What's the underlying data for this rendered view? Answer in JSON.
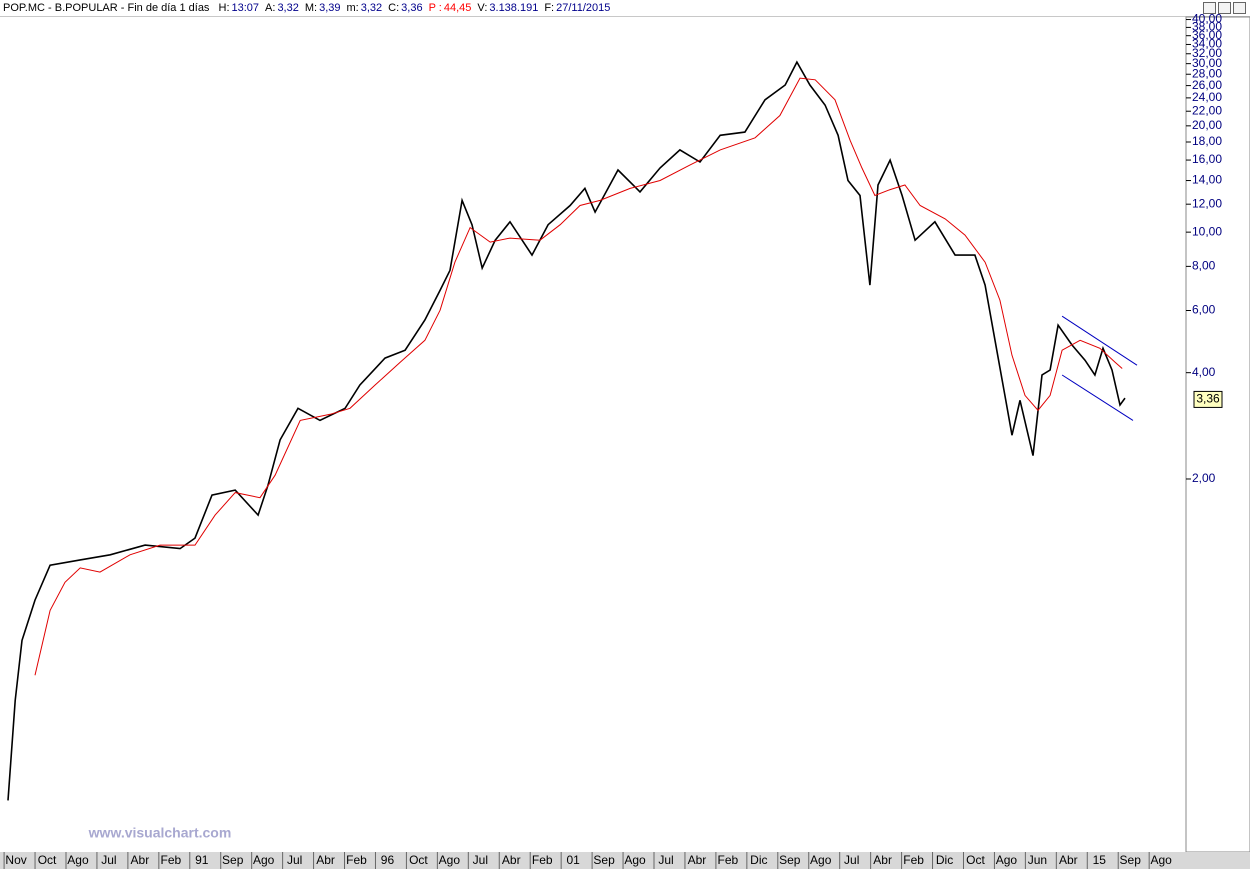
{
  "chart_data": {
    "type": "line",
    "title": "POP.MC - B.POPULAR - Fin de día 1 días",
    "header_fields": [
      {
        "label": "H:",
        "value": "13:07",
        "color": "#00008b"
      },
      {
        "label": "A:",
        "value": "3,32",
        "color": "#00008b"
      },
      {
        "label": "M:",
        "value": "3,39",
        "color": "#00008b"
      },
      {
        "label": "m:",
        "value": "3,32",
        "color": "#00008b"
      },
      {
        "label": "C:",
        "value": "3,36",
        "color": "#00008b"
      },
      {
        "label": "P :",
        "value": "44,45",
        "color": "#ff0000"
      },
      {
        "label": "V:",
        "value": "3.138.191",
        "color": "#00008b"
      },
      {
        "label": "F:",
        "value": "27/11/2015",
        "color": "#00008b"
      }
    ],
    "watermark": "www.visualchart.com",
    "log_scale": true,
    "categories": [
      "Nov",
      "Oct",
      "Ago",
      "Jul",
      "Abr",
      "Feb",
      "91",
      "Sep",
      "Ago",
      "Jul",
      "Abr",
      "Feb",
      "96",
      "Oct",
      "Ago",
      "Jul",
      "Abr",
      "Feb",
      "01",
      "Sep",
      "Ago",
      "Jul",
      "Abr",
      "Feb",
      "Dic",
      "Sep",
      "Ago",
      "Jul",
      "Abr",
      "Feb",
      "Dic",
      "Oct",
      "Ago",
      "Jun",
      "Abr",
      "15",
      "Sep",
      "Ago"
    ],
    "xlim": [
      -0.52,
      37.77
    ],
    "ylim": [
      0.178,
      41.2
    ],
    "yticks": [
      {
        "value": 40,
        "label": "40,00"
      },
      {
        "value": 38,
        "label": "38,00"
      },
      {
        "value": 36,
        "label": "36,00"
      },
      {
        "value": 34,
        "label": "34,00"
      },
      {
        "value": 32,
        "label": "32,00"
      },
      {
        "value": 30,
        "label": "30,00"
      },
      {
        "value": 28,
        "label": "28,00"
      },
      {
        "value": 26,
        "label": "26,00"
      },
      {
        "value": 24,
        "label": "24,00"
      },
      {
        "value": 22,
        "label": "22,00"
      },
      {
        "value": 20,
        "label": "20,00"
      },
      {
        "value": 18,
        "label": "18,00"
      },
      {
        "value": 16,
        "label": "16,00"
      },
      {
        "value": 14,
        "label": "14,00"
      },
      {
        "value": 12,
        "label": "12,00"
      },
      {
        "value": 10,
        "label": "10,00"
      },
      {
        "value": 8,
        "label": "8,00"
      },
      {
        "value": 6,
        "label": "6,00"
      },
      {
        "value": 4,
        "label": "4,00"
      },
      {
        "value": 2,
        "label": "2,00"
      }
    ],
    "series": [
      {
        "color": "#000000",
        "x": [
          -0.26,
          -0.03,
          0.19,
          0.61,
          1.1,
          2.07,
          3.04,
          4.17,
          5.3,
          5.78,
          6.33,
          7.08,
          7.82,
          8.14,
          8.53,
          9.11,
          9.82,
          10.63,
          11.11,
          11.92,
          12.57,
          13.21,
          13.7,
          14.02,
          14.41,
          14.73,
          15.06,
          15.48,
          15.96,
          16.67,
          17.19,
          17.9,
          18.38,
          18.71,
          19.45,
          20.16,
          20.81,
          21.45,
          22.1,
          22.75,
          23.55,
          24.2,
          24.85,
          25.23,
          25.65,
          26.14,
          26.56,
          26.88,
          27.27,
          27.59,
          27.85,
          28.24,
          28.63,
          29.05,
          29.69,
          30.34,
          30.98,
          31.31,
          31.63,
          31.95,
          32.18,
          32.44,
          32.86,
          33.15,
          33.41,
          33.67,
          34.12,
          34.54,
          34.86,
          35.12,
          35.41,
          35.67,
          35.83
        ],
        "values": [
          0.246,
          0.472,
          0.698,
          0.908,
          1.14,
          1.18,
          1.22,
          1.3,
          1.27,
          1.36,
          1.8,
          1.86,
          1.58,
          1.92,
          2.58,
          3.17,
          2.93,
          3.17,
          3.69,
          4.4,
          4.63,
          5.64,
          6.85,
          7.8,
          12.3,
          10.5,
          7.91,
          9.49,
          10.7,
          8.61,
          10.5,
          11.9,
          13.3,
          11.4,
          15.0,
          13.0,
          15.2,
          17.1,
          15.8,
          18.8,
          19.2,
          23.7,
          26.1,
          30.3,
          26.1,
          22.9,
          18.8,
          14.0,
          12.7,
          7.08,
          13.6,
          16.0,
          12.7,
          9.49,
          10.7,
          8.61,
          8.61,
          7.08,
          4.94,
          3.45,
          2.66,
          3.34,
          2.33,
          3.94,
          4.07,
          5.45,
          4.79,
          4.34,
          3.94,
          4.69,
          4.07,
          3.24,
          3.39
        ]
      },
      {
        "color": "#e00000",
        "x": [
          0.61,
          1.1,
          1.58,
          2.07,
          2.71,
          3.68,
          4.65,
          5.78,
          6.43,
          7.08,
          7.88,
          8.37,
          9.18,
          10.15,
          10.79,
          11.6,
          12.41,
          13.21,
          13.7,
          14.18,
          14.67,
          15.32,
          15.96,
          16.93,
          17.58,
          18.22,
          18.87,
          19.84,
          20.81,
          21.78,
          22.75,
          23.88,
          24.68,
          25.33,
          25.82,
          26.46,
          26.95,
          27.33,
          27.75,
          28.24,
          28.72,
          29.21,
          30.02,
          30.66,
          31.31,
          31.79,
          32.18,
          32.6,
          33.02,
          33.41,
          33.8,
          34.38,
          35.02,
          35.51,
          35.74
        ],
        "values": [
          0.556,
          0.849,
          1.02,
          1.12,
          1.09,
          1.22,
          1.3,
          1.3,
          1.58,
          1.83,
          1.77,
          2.05,
          2.93,
          3.05,
          3.17,
          3.69,
          4.28,
          4.94,
          6.01,
          8.22,
          10.3,
          9.37,
          9.62,
          9.49,
          10.5,
          11.9,
          12.3,
          13.3,
          14.0,
          15.5,
          17.1,
          18.5,
          21.4,
          27.3,
          27.0,
          23.7,
          18.2,
          15.2,
          12.7,
          13.2,
          13.6,
          11.9,
          10.9,
          9.81,
          8.22,
          6.42,
          4.48,
          3.45,
          3.13,
          3.45,
          4.63,
          4.94,
          4.69,
          4.28,
          4.11
        ]
      },
      {
        "color": "#0000c0",
        "x": [
          33.8,
          36.22
        ],
        "values": [
          5.78,
          4.2
        ]
      },
      {
        "color": "#0000c0",
        "x": [
          33.8,
          36.09
        ],
        "values": [
          3.94,
          2.93
        ]
      }
    ],
    "annotations": [
      {
        "text": "3,36",
        "y": 3.36
      }
    ]
  }
}
